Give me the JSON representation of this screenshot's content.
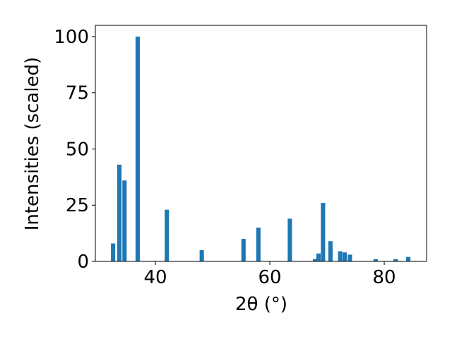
{
  "chart_data": {
    "type": "bar",
    "x": [
      32.6,
      33.7,
      34.6,
      36.9,
      42.0,
      48.1,
      55.4,
      58.0,
      63.5,
      67.9,
      68.5,
      69.3,
      70.6,
      72.3,
      73.1,
      74.0,
      78.5,
      82.0,
      84.2
    ],
    "values": [
      8,
      43,
      36,
      100,
      23,
      5,
      10,
      15,
      19,
      1,
      3.5,
      26,
      9,
      4.5,
      4,
      3,
      1,
      1,
      2
    ],
    "color": "#1f77b4",
    "xlabel": "2θ (°)",
    "ylabel": "Intensities (scaled)",
    "xlim": [
      29.5,
      87.4
    ],
    "ylim": [
      0,
      105
    ],
    "xticks": [
      40,
      60,
      80
    ],
    "yticks": [
      0,
      25,
      50,
      75,
      100
    ]
  }
}
